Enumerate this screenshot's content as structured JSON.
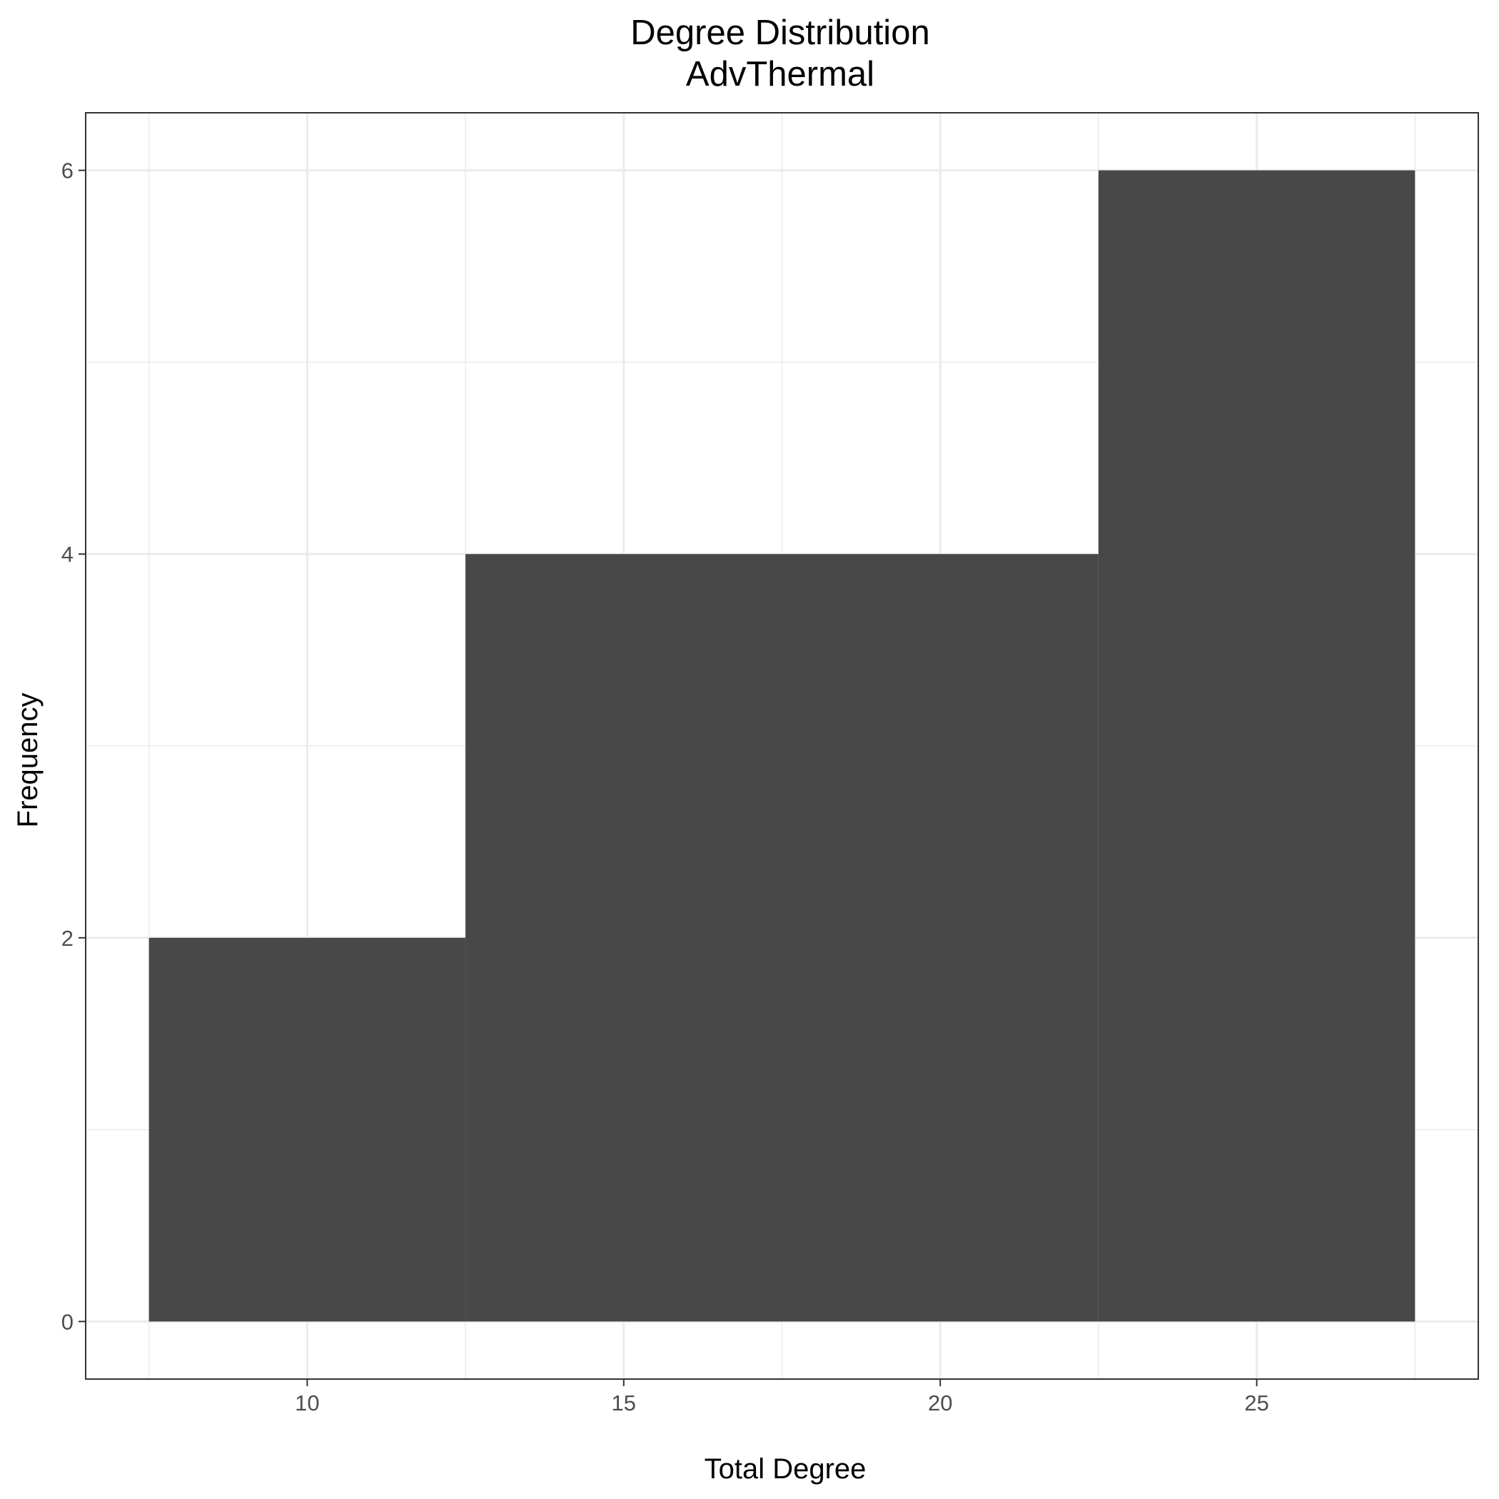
{
  "chart_data": {
    "type": "bar",
    "title": "Degree Distribution",
    "subtitle": "AdvThermal",
    "xlabel": "Total Degree",
    "ylabel": "Frequency",
    "bin_width": 5,
    "bins": [
      {
        "x_start": 7.5,
        "x_end": 12.5,
        "value": 2
      },
      {
        "x_start": 12.5,
        "x_end": 17.5,
        "value": 4
      },
      {
        "x_start": 17.5,
        "x_end": 22.5,
        "value": 4
      },
      {
        "x_start": 22.5,
        "x_end": 27.5,
        "value": 6
      }
    ],
    "xlim": [
      6.5,
      28.5
    ],
    "ylim": [
      -0.3,
      6.3
    ],
    "x_ticks": [
      10,
      15,
      20,
      25
    ],
    "y_ticks": [
      0,
      2,
      4,
      6
    ],
    "x_minor_ticks": [
      7.5,
      12.5,
      17.5,
      22.5,
      27.5
    ],
    "y_minor_ticks": [
      1,
      3,
      5
    ],
    "grid": true,
    "legend": "none",
    "bar_color": "#484848",
    "grid_color": "#ebebeb",
    "panel_border_color": "#333333"
  }
}
